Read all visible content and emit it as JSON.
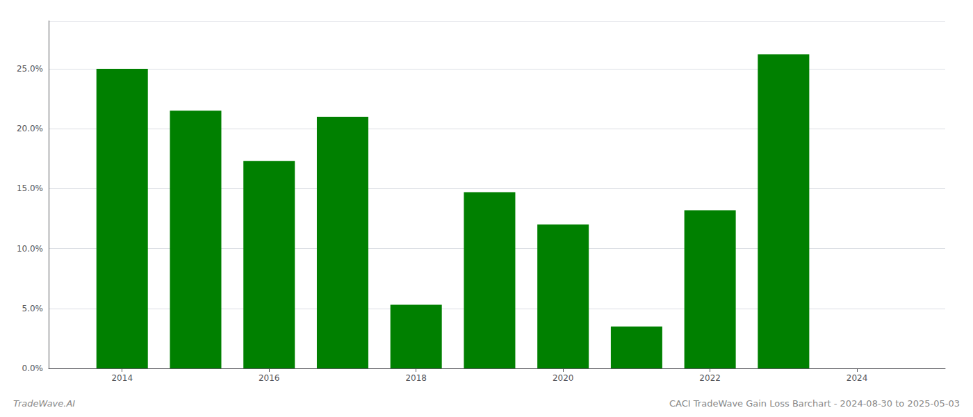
{
  "chart_data": {
    "type": "bar",
    "x": [
      2014,
      2015,
      2016,
      2017,
      2018,
      2019,
      2020,
      2021,
      2022,
      2023
    ],
    "values": [
      0.25,
      0.215,
      0.173,
      0.21,
      0.053,
      0.147,
      0.12,
      0.035,
      0.132,
      0.262
    ],
    "color": "#008000",
    "xlim": [
      2013.0,
      2025.2
    ],
    "xticks": [
      2014,
      2016,
      2018,
      2020,
      2022,
      2024
    ],
    "ylim": [
      0,
      0.29
    ],
    "yticks": [
      {
        "value": 0.0,
        "label": "0.0%"
      },
      {
        "value": 0.05,
        "label": "5.0%"
      },
      {
        "value": 0.1,
        "label": "10.0%"
      },
      {
        "value": 0.15,
        "label": "15.0%"
      },
      {
        "value": 0.2,
        "label": "20.0%"
      },
      {
        "value": 0.25,
        "label": "25.0%"
      }
    ],
    "grid": true,
    "annotations": [
      "TradeWave.AI",
      "CACI TradeWave Gain Loss Barchart - 2024-08-30 to 2025-05-03"
    ]
  }
}
